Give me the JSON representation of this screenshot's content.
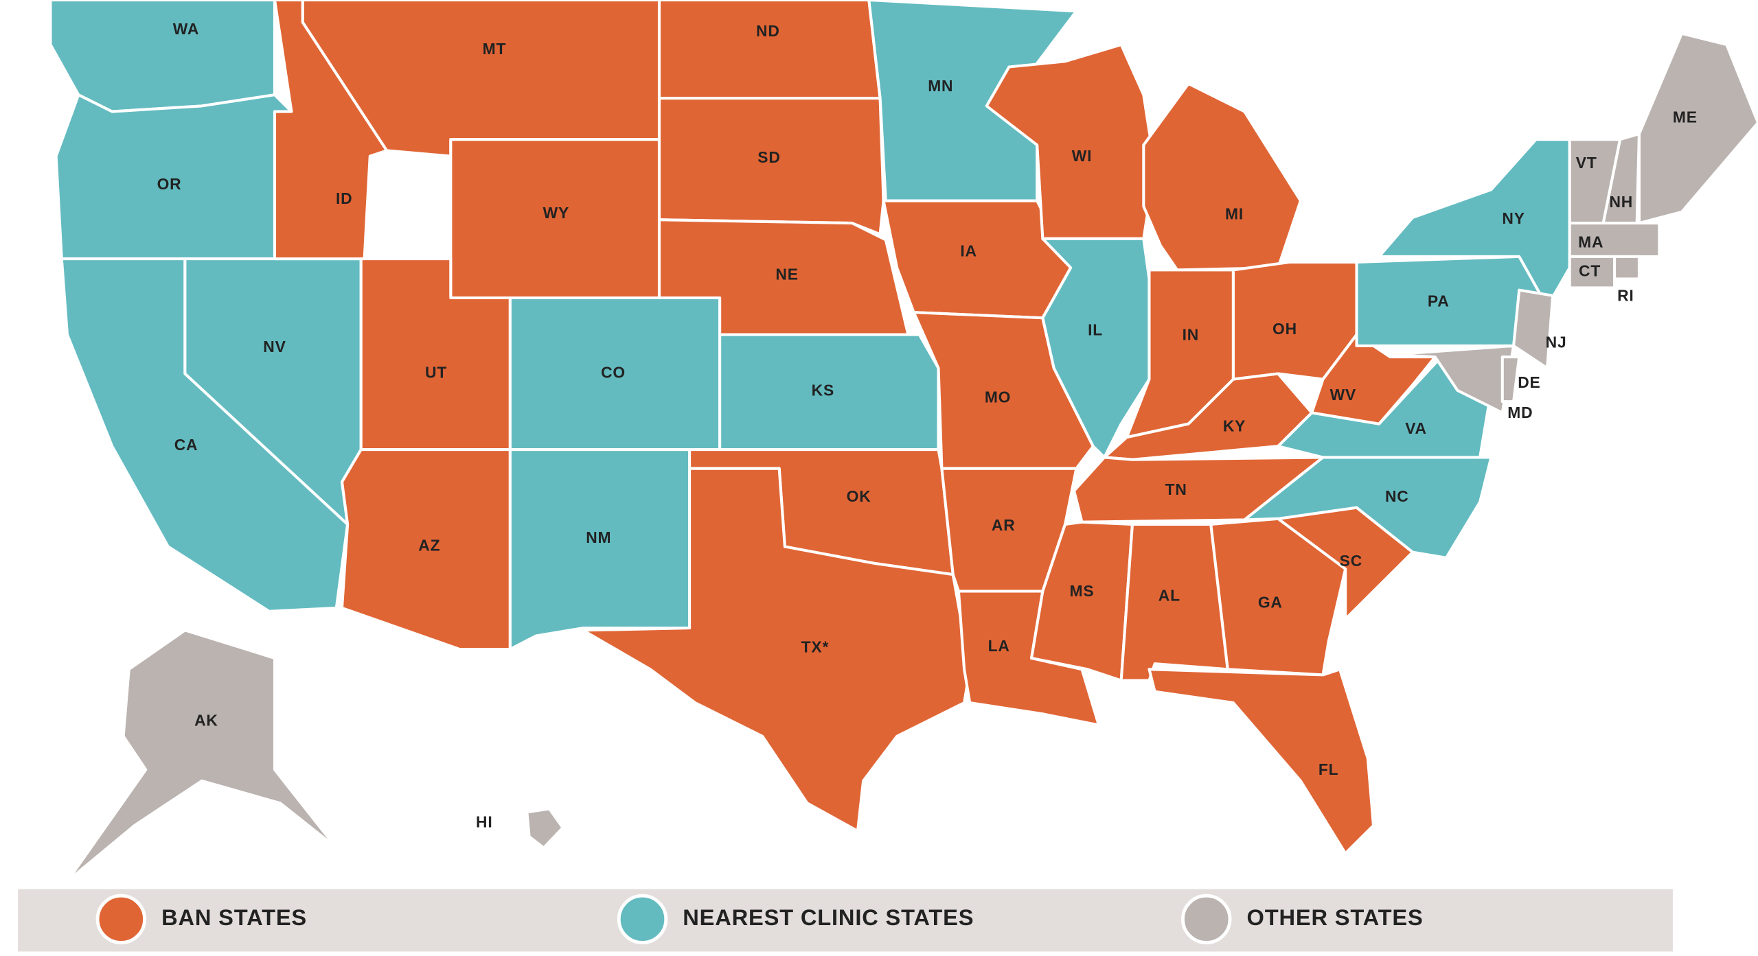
{
  "groups": [
    {
      "label": "BAN STATES",
      "color": "#e06535",
      "states": [
        "MT",
        "ND",
        "ID",
        "SD",
        "WY",
        "NE",
        "UT",
        "AZ",
        "OK",
        "TX*",
        "IA",
        "MO",
        "AR",
        "LA",
        "WI",
        "MI",
        "IN",
        "OH",
        "KY",
        "WV",
        "TN",
        "MS",
        "AL",
        "GA",
        "SC",
        "FL"
      ]
    },
    {
      "label": "NEAREST CLINIC STATES",
      "color": "#63bbc0",
      "states": [
        "WA",
        "OR",
        "CA",
        "NV",
        "CO",
        "NM",
        "KS",
        "MN",
        "IL",
        "PA",
        "NY",
        "VA",
        "NC"
      ]
    },
    {
      "label": "OTHER STATES",
      "color": "#bab3b0",
      "states": [
        "AK",
        "HI",
        "ME",
        "VT",
        "NH",
        "MA",
        "CT",
        "RI",
        "NJ",
        "DE",
        "MD"
      ]
    }
  ]
}
